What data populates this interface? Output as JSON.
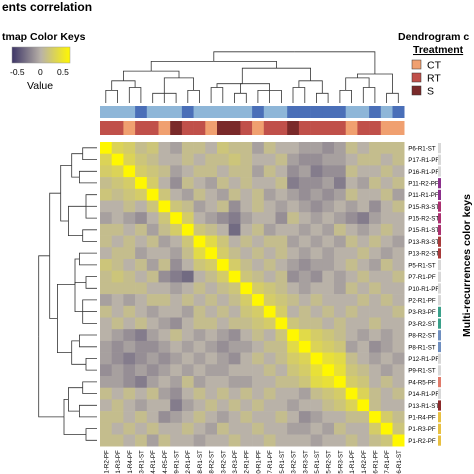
{
  "chart_data": {
    "type": "heatmap",
    "title": "ents correlation",
    "color_key": {
      "title": "tmap Color Keys",
      "caption": "Value",
      "ticks": [
        "-0.5",
        "0",
        "0.5"
      ],
      "low_color": "#3d3566",
      "mid_color": "#b9b2a8",
      "high_color": "#fff700"
    },
    "legend": {
      "title": "Dendrogram c",
      "subtitle": "Treatment",
      "items": [
        {
          "label": "CT",
          "color": "#f0a070"
        },
        {
          "label": "RT",
          "color": "#c0504a"
        },
        {
          "label": "S",
          "color": "#7a2a2a"
        }
      ]
    },
    "right_axis_title": "Multi-recurrences color keys",
    "row_labels": [
      "P6-R1-ST",
      "P17-R1-PF",
      "P16-R1-PF",
      "P11-R2-PF",
      "P11-R1-PF",
      "P15-R3-ST",
      "P15-R2-ST",
      "P15-R1-ST",
      "P13-R3-ST",
      "P13-R2-ST",
      "P5-R1-ST",
      "P7-R1-PF",
      "P10-R1-PF",
      "P2-R1-PF",
      "P3-R3-PF",
      "P3-R2-ST",
      "P8-R2-ST",
      "P8-R1-ST",
      "P12-R1-PF",
      "P9-R1-ST",
      "P4-R5-PF",
      "P14-R1-PF",
      "P13-R1-ST",
      "P1-R4-PF",
      "P1-R3-PF",
      "P1-R2-PF"
    ],
    "col_labels": [
      "P1-R2-PF",
      "P1-R3-PF",
      "P1-R4-PF",
      "P13-R1-ST",
      "P14-R1-PF",
      "P4-R5-PF",
      "P9-R1-ST",
      "P12-R1-PF",
      "P8-R1-ST",
      "P8-R2-ST",
      "P3-R2-ST",
      "P3-R3-PF",
      "P2-R1-PF",
      "P10-R1-PF",
      "P7-R1-PF",
      "P5-R1-ST",
      "P13-R2-ST",
      "P13-R3-ST",
      "P15-R1-ST",
      "P15-R2-ST",
      "P15-R3-ST",
      "P11-R1-PF",
      "P11-R2-PF",
      "P16-R1-PF",
      "P17-R1-PF",
      "P6-R1-ST"
    ],
    "row_group_colors": [
      "#d8d8d8",
      "#d8d8d8",
      "#d8d8d8",
      "#8b2f8b",
      "#8b2f8b",
      "#ab3070",
      "#ab3070",
      "#ab3070",
      "#a83a3a",
      "#a83a3a",
      "#d8d8d8",
      "#d8d8d8",
      "#d8d8d8",
      "#d8d8d8",
      "#3aa08a",
      "#3aa08a",
      "#6f8fc0",
      "#6f8fc0",
      "#d8d8d8",
      "#d8d8d8",
      "#e07a6a",
      "#d8d8d8",
      "#8b2a2a",
      "#e8c040",
      "#e8c040",
      "#e8c040"
    ],
    "col_treatment": [
      "RT",
      "RT",
      "CT",
      "RT",
      "RT",
      "CT",
      "S",
      "RT",
      "RT",
      "CT",
      "S",
      "S",
      "RT",
      "CT",
      "RT",
      "RT",
      "S",
      "RT",
      "RT",
      "RT",
      "RT",
      "CT",
      "RT",
      "RT",
      "CT",
      "CT"
    ],
    "col_top_bar": [
      "#8eb6d8",
      "#8eb6d8",
      "#8eb6d8",
      "#4a6fb8",
      "#8eb6d8",
      "#8eb6d8",
      "#8eb6d8",
      "#4a6fb8",
      "#8eb6d8",
      "#8eb6d8",
      "#8eb6d8",
      "#8eb6d8",
      "#8eb6d8",
      "#4a6fb8",
      "#8eb6d8",
      "#8eb6d8",
      "#4a6fb8",
      "#4a6fb8",
      "#4a6fb8",
      "#4a6fb8",
      "#4a6fb8",
      "#8eb6d8",
      "#8eb6d8",
      "#4a6fb8",
      "#8eb6d8",
      "#4a6fb8"
    ],
    "value_range": [
      -0.7,
      1.0
    ],
    "values": [
      [
        1.0,
        0.4,
        0.3,
        0.1,
        0.2,
        0.0,
        -0.1,
        0.1,
        0.1,
        0.0,
        0.2,
        0.1,
        0.1,
        -0.1,
        0.1,
        0.0,
        0.0,
        -0.1,
        -0.1,
        -0.2,
        -0.1,
        0.1,
        0.0,
        0.1,
        0.1,
        0.1
      ],
      [
        0.4,
        1.0,
        0.4,
        0.2,
        0.1,
        0.0,
        0.0,
        0.1,
        0.0,
        0.1,
        0.1,
        0.2,
        0.1,
        0.0,
        0.0,
        0.1,
        -0.1,
        -0.2,
        -0.2,
        -0.1,
        -0.1,
        0.0,
        0.1,
        0.1,
        0.0,
        0.1
      ],
      [
        0.3,
        0.4,
        1.0,
        0.3,
        0.2,
        0.1,
        -0.1,
        0.0,
        0.1,
        0.1,
        0.0,
        0.1,
        0.1,
        -0.1,
        0.1,
        0.0,
        -0.2,
        -0.1,
        -0.3,
        -0.2,
        -0.2,
        0.1,
        0.0,
        0.0,
        0.1,
        0.0
      ],
      [
        0.1,
        0.2,
        0.3,
        1.0,
        0.3,
        0.0,
        -0.2,
        0.1,
        0.0,
        -0.1,
        0.1,
        0.0,
        0.1,
        0.0,
        0.0,
        0.1,
        -0.3,
        -0.2,
        -0.2,
        -0.1,
        -0.3,
        0.0,
        -0.1,
        0.1,
        0.0,
        0.1
      ],
      [
        0.2,
        0.1,
        0.2,
        0.3,
        1.0,
        0.2,
        0.0,
        -0.1,
        0.1,
        0.0,
        -0.1,
        0.1,
        0.0,
        0.1,
        -0.1,
        0.0,
        -0.1,
        -0.2,
        -0.1,
        -0.2,
        -0.1,
        0.1,
        0.0,
        0.0,
        0.1,
        -0.1
      ],
      [
        0.0,
        0.0,
        0.1,
        0.0,
        0.2,
        1.0,
        0.2,
        0.1,
        -0.1,
        0.0,
        0.1,
        -0.2,
        0.0,
        0.1,
        0.0,
        -0.1,
        0.0,
        -0.1,
        -0.2,
        -0.1,
        0.0,
        -0.1,
        0.0,
        -0.2,
        0.0,
        0.1
      ],
      [
        -0.1,
        0.0,
        -0.1,
        -0.2,
        0.0,
        0.2,
        1.0,
        0.3,
        0.0,
        -0.1,
        -0.2,
        -0.3,
        -0.1,
        0.0,
        0.0,
        -0.2,
        0.1,
        0.0,
        -0.1,
        0.0,
        -0.1,
        -0.2,
        -0.3,
        -0.1,
        0.0,
        0.0
      ],
      [
        0.1,
        0.1,
        0.0,
        0.1,
        -0.1,
        0.1,
        0.3,
        1.0,
        0.2,
        0.1,
        0.0,
        -0.4,
        0.0,
        0.1,
        -0.1,
        0.0,
        0.0,
        -0.1,
        0.0,
        -0.1,
        0.1,
        0.0,
        -0.1,
        0.0,
        0.1,
        0.0
      ],
      [
        0.1,
        0.0,
        0.1,
        0.0,
        0.1,
        -0.1,
        0.0,
        0.2,
        1.0,
        0.5,
        0.2,
        0.0,
        0.1,
        0.0,
        0.1,
        0.1,
        -0.1,
        0.0,
        -0.1,
        0.0,
        -0.1,
        0.1,
        0.0,
        0.1,
        0.0,
        -0.1
      ],
      [
        0.0,
        0.1,
        0.1,
        -0.1,
        0.0,
        0.0,
        -0.1,
        0.1,
        0.5,
        1.0,
        0.3,
        0.1,
        0.0,
        0.1,
        0.0,
        0.1,
        0.0,
        -0.1,
        0.0,
        -0.1,
        0.0,
        0.0,
        0.1,
        0.0,
        -0.1,
        0.0
      ],
      [
        0.2,
        0.1,
        0.0,
        0.1,
        -0.1,
        0.1,
        -0.2,
        0.0,
        0.2,
        0.3,
        1.0,
        0.3,
        0.1,
        0.0,
        0.1,
        0.0,
        -0.1,
        -0.2,
        -0.1,
        -0.1,
        0.0,
        0.1,
        0.0,
        -0.1,
        0.1,
        0.0
      ],
      [
        0.1,
        0.2,
        0.1,
        0.0,
        0.1,
        -0.2,
        -0.3,
        -0.4,
        0.0,
        0.1,
        0.3,
        1.0,
        0.2,
        0.1,
        0.0,
        0.1,
        -0.2,
        -0.1,
        -0.2,
        0.0,
        -0.1,
        0.0,
        0.1,
        0.0,
        0.0,
        0.1
      ],
      [
        0.1,
        0.1,
        0.1,
        0.1,
        0.0,
        0.0,
        -0.1,
        0.0,
        0.1,
        0.0,
        0.1,
        0.2,
        1.0,
        0.3,
        0.2,
        0.1,
        0.0,
        -0.1,
        0.0,
        0.0,
        -0.1,
        0.1,
        0.0,
        0.1,
        0.0,
        0.0
      ],
      [
        -0.1,
        0.0,
        -0.1,
        0.0,
        0.1,
        0.1,
        0.0,
        0.1,
        0.0,
        0.1,
        0.0,
        0.1,
        0.3,
        1.0,
        0.3,
        0.2,
        0.1,
        0.0,
        0.1,
        0.0,
        0.0,
        0.0,
        0.1,
        0.0,
        0.1,
        0.0
      ],
      [
        0.1,
        0.0,
        0.1,
        0.0,
        -0.1,
        0.0,
        0.0,
        -0.1,
        0.1,
        0.0,
        0.1,
        0.0,
        0.2,
        0.3,
        1.0,
        0.3,
        0.0,
        0.1,
        0.0,
        0.1,
        0.0,
        0.1,
        0.0,
        0.0,
        0.0,
        0.1
      ],
      [
        0.0,
        0.1,
        0.0,
        0.1,
        0.0,
        -0.1,
        -0.2,
        0.0,
        0.1,
        0.1,
        0.0,
        0.1,
        0.1,
        0.2,
        0.3,
        1.0,
        0.2,
        0.1,
        0.1,
        0.0,
        0.1,
        0.0,
        0.0,
        0.1,
        0.0,
        0.0
      ],
      [
        0.0,
        -0.1,
        -0.2,
        -0.3,
        -0.1,
        0.0,
        0.1,
        0.0,
        -0.1,
        0.0,
        -0.1,
        -0.2,
        0.0,
        0.1,
        0.0,
        0.2,
        1.0,
        0.5,
        0.3,
        0.2,
        0.1,
        0.0,
        -0.1,
        0.0,
        -0.1,
        0.0
      ],
      [
        -0.1,
        -0.2,
        -0.1,
        -0.2,
        -0.2,
        -0.1,
        0.0,
        -0.1,
        0.0,
        -0.1,
        -0.2,
        -0.1,
        -0.1,
        0.0,
        0.1,
        0.1,
        0.5,
        1.0,
        0.4,
        0.3,
        0.2,
        -0.1,
        0.0,
        -0.2,
        -0.1,
        0.0
      ],
      [
        -0.1,
        -0.2,
        -0.3,
        -0.2,
        -0.1,
        -0.2,
        -0.1,
        0.0,
        -0.1,
        0.0,
        -0.1,
        -0.2,
        0.0,
        0.1,
        0.0,
        0.1,
        0.3,
        0.4,
        1.0,
        0.6,
        0.5,
        0.1,
        0.0,
        -0.1,
        0.0,
        -0.1
      ],
      [
        -0.2,
        -0.1,
        -0.2,
        -0.1,
        -0.2,
        -0.1,
        0.0,
        -0.1,
        0.0,
        -0.1,
        -0.1,
        0.0,
        0.0,
        0.0,
        0.1,
        0.0,
        0.2,
        0.3,
        0.6,
        1.0,
        0.6,
        0.2,
        0.1,
        0.0,
        -0.1,
        0.0
      ],
      [
        -0.1,
        -0.1,
        -0.2,
        -0.3,
        -0.1,
        0.0,
        -0.1,
        0.1,
        -0.1,
        0.0,
        0.0,
        -0.1,
        -0.1,
        0.0,
        0.0,
        0.1,
        0.1,
        0.2,
        0.5,
        0.6,
        1.0,
        0.3,
        0.2,
        0.0,
        0.1,
        0.0
      ],
      [
        0.1,
        0.0,
        0.1,
        0.0,
        0.1,
        -0.1,
        -0.2,
        0.0,
        0.1,
        0.0,
        0.1,
        0.0,
        0.1,
        0.0,
        0.1,
        0.0,
        0.0,
        -0.1,
        0.1,
        0.2,
        0.3,
        1.0,
        0.4,
        0.1,
        0.0,
        0.1
      ],
      [
        0.0,
        0.1,
        0.0,
        -0.1,
        0.0,
        0.0,
        -0.3,
        -0.1,
        0.0,
        0.1,
        0.0,
        0.1,
        0.0,
        0.1,
        0.0,
        0.0,
        -0.1,
        0.0,
        0.0,
        0.1,
        0.2,
        0.4,
        1.0,
        0.1,
        0.0,
        0.0
      ],
      [
        0.1,
        0.1,
        0.0,
        0.1,
        0.0,
        -0.2,
        -0.1,
        0.0,
        0.1,
        0.0,
        -0.1,
        0.0,
        0.1,
        0.0,
        0.0,
        0.1,
        0.0,
        -0.2,
        -0.1,
        0.0,
        0.0,
        0.1,
        0.1,
        1.0,
        0.3,
        0.1
      ],
      [
        0.1,
        0.0,
        0.1,
        0.0,
        0.1,
        0.0,
        0.0,
        0.1,
        0.0,
        -0.1,
        0.1,
        0.0,
        0.0,
        0.1,
        0.0,
        0.0,
        -0.1,
        -0.1,
        0.0,
        -0.1,
        0.1,
        0.0,
        0.0,
        0.3,
        1.0,
        0.2
      ],
      [
        0.1,
        0.1,
        0.0,
        0.1,
        -0.1,
        0.1,
        0.0,
        0.0,
        -0.1,
        0.0,
        0.0,
        0.1,
        0.0,
        0.0,
        0.1,
        0.0,
        0.0,
        0.0,
        -0.1,
        0.0,
        0.0,
        0.1,
        0.0,
        0.1,
        0.2,
        1.0
      ]
    ]
  }
}
